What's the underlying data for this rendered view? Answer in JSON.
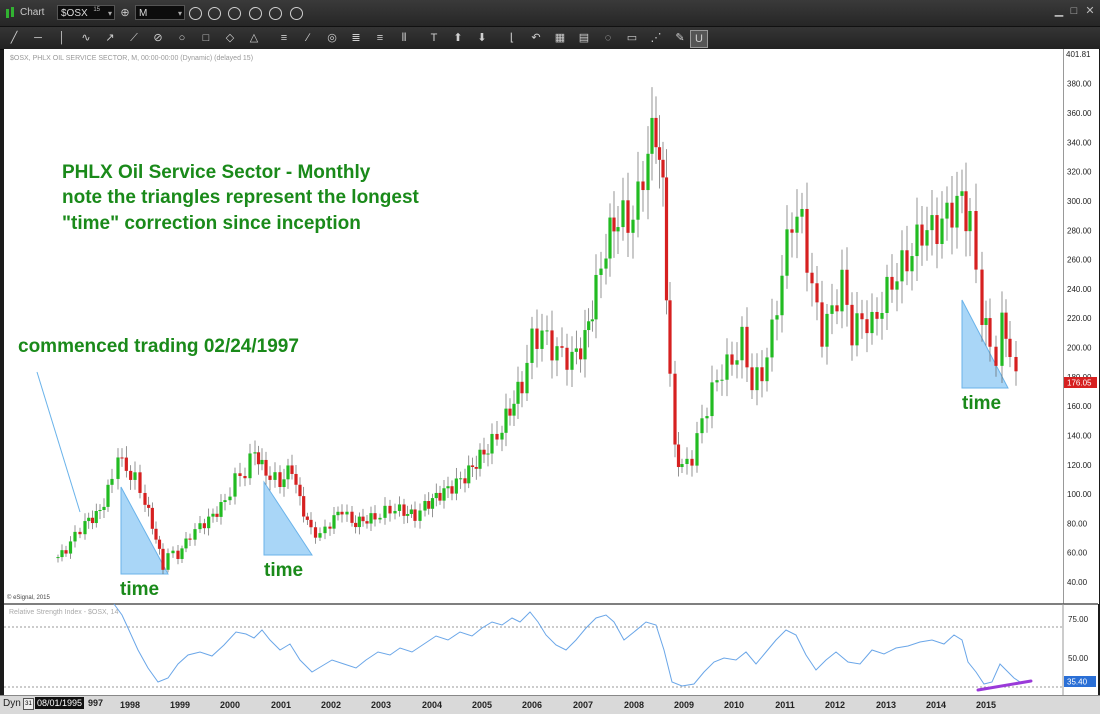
{
  "app": {
    "title": "Chart",
    "symbol": "$OSX",
    "symbol_sup": "15",
    "interval": "M"
  },
  "chart": {
    "header": "$OSX, PHLX OIL SERVICE SECTOR, M, 00:00-00:00 (Dynamic) (delayed 15)",
    "copyright": "© eSignal, 2015",
    "annotation_lines": [
      "PHLX Oil Service Sector - Monthly",
      "note the triangles represent the longest",
      "\"time\" correction since inception"
    ],
    "commenced": "commenced trading 02/24/1997",
    "time_label": "time",
    "price_top": "401.81",
    "price_last": "176.05"
  },
  "rsi": {
    "header": "Relative Strength Index - $OSX, 14",
    "last": "35.40",
    "tick_75": "75.00",
    "tick_50": "50.00"
  },
  "status": {
    "mode": "Dyn",
    "date": "08/01/1995",
    "date_tail": "997"
  },
  "axis": {
    "years": [
      "1998",
      "1999",
      "2000",
      "2001",
      "2002",
      "2003",
      "2004",
      "2005",
      "2006",
      "2007",
      "2008",
      "2009",
      "2010",
      "2011",
      "2012",
      "2013",
      "2014",
      "2015"
    ],
    "price_ticks": [
      "380.00",
      "360.00",
      "340.00",
      "320.00",
      "300.00",
      "280.00",
      "260.00",
      "240.00",
      "220.00",
      "200.00",
      "180.00",
      "160.00",
      "140.00",
      "120.00",
      "100.00",
      "80.00",
      "60.00",
      "40.00"
    ]
  },
  "colors": {
    "up": "#22bb22",
    "down": "#d62020",
    "triangle": "#a9d6f7",
    "annotation": "#1a8a1a",
    "rsi_line": "#6aa6e8",
    "diverge": "#9a3ad9",
    "last_badge": "#d62020",
    "rsi_badge": "#2a6fd6"
  },
  "chart_data": {
    "type": "candlestick",
    "title": "PHLX Oil Service Sector - Monthly",
    "ylim": [
      40,
      401.81
    ],
    "approx_monthly_close_by_year": {
      "1997": 80,
      "1998": 48,
      "1999": 85,
      "2000": 120,
      "2001": 65,
      "2002": 80,
      "2003": 88,
      "2004": 115,
      "2005": 160,
      "2006": 195,
      "2007": 290,
      "2008": 110,
      "2009": 195,
      "2010": 225,
      "2011": 185,
      "2012": 215,
      "2013": 270,
      "2014": 200,
      "2015": 176.05
    },
    "rsi_last": 35.4
  }
}
